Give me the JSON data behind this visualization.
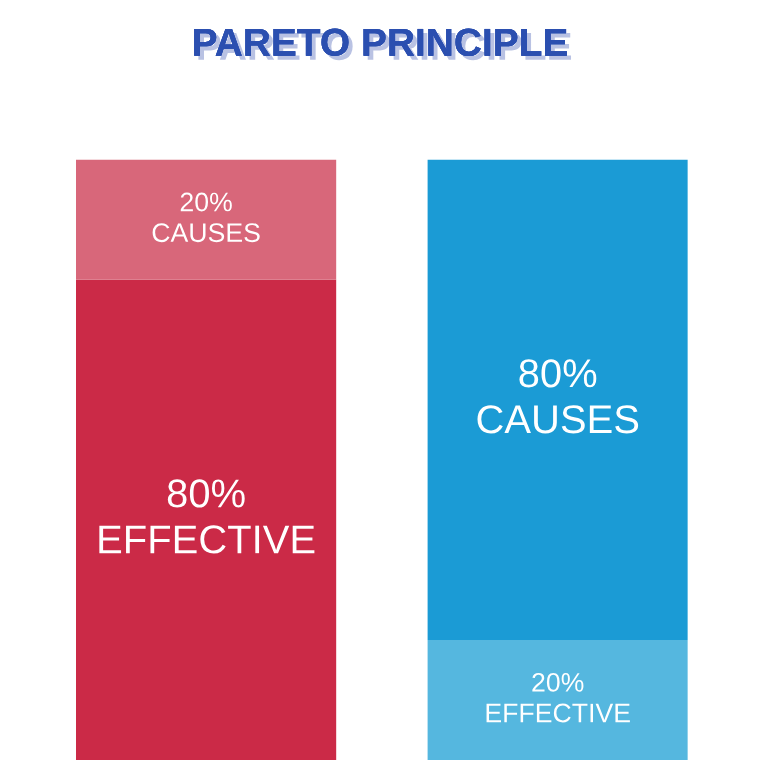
{
  "chart_data": {
    "type": "bar",
    "title": "PARETO PRINCIPLE",
    "stacked": true,
    "categories": [
      null,
      null
    ],
    "series": [
      {
        "colors": [
          "#cb2a47",
          "#55b7df"
        ],
        "values": [
          80,
          20
        ],
        "value_labels": [
          "80%\nEFFECTIVE",
          "20%\nEFFECTIVE"
        ]
      },
      {
        "colors": [
          "#d8677a",
          "#1b9bd5"
        ],
        "values": [
          20,
          80
        ],
        "value_labels": [
          "20%\nCAUSES",
          "80%\nCAUSES"
        ]
      }
    ]
  }
}
